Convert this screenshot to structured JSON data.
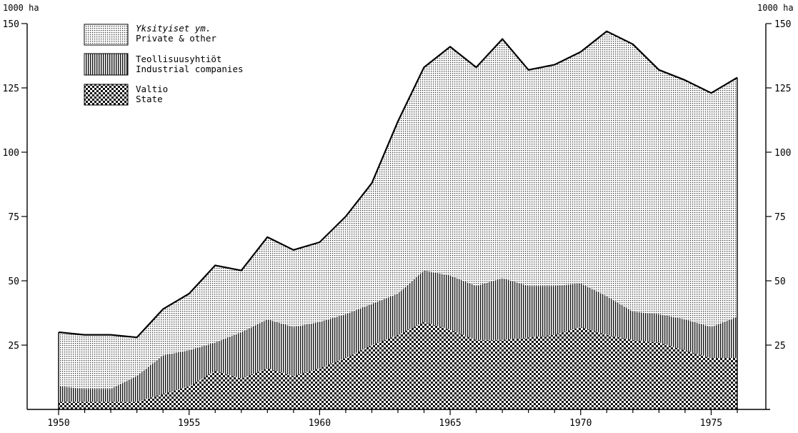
{
  "chart_data": {
    "type": "area",
    "stacked": true,
    "y_unit_left": "1000 ha",
    "y_unit_right": "1000 ha",
    "xlim": [
      1950,
      1976
    ],
    "ylim": [
      0,
      150
    ],
    "x_ticks": [
      1950,
      1955,
      1960,
      1965,
      1970,
      1975
    ],
    "x_tick_labels": [
      "1950",
      "1955",
      "1960",
      "1965",
      "1970",
      "1975"
    ],
    "y_ticks": [
      25,
      50,
      75,
      100,
      125,
      150
    ],
    "y_tick_labels": [
      "25",
      "50",
      "75",
      "100",
      "125",
      "150"
    ],
    "x": [
      1950,
      1951,
      1952,
      1953,
      1954,
      1955,
      1956,
      1957,
      1958,
      1959,
      1960,
      1961,
      1962,
      1963,
      1964,
      1965,
      1966,
      1967,
      1968,
      1969,
      1970,
      1971,
      1972,
      1973,
      1974,
      1975,
      1976
    ],
    "series": [
      {
        "name_fi": "Valtio",
        "name_en": "State",
        "pattern": "checker",
        "values": [
          3,
          3,
          3,
          3,
          6,
          9,
          15,
          12,
          16,
          13,
          16,
          20,
          25,
          29,
          34,
          31,
          27,
          27,
          28,
          29,
          32,
          29,
          27,
          26,
          23,
          20,
          20
        ]
      },
      {
        "name_fi": "Teollisuusyhtiöt",
        "name_en": "Industrial companies",
        "pattern": "vertical-lines",
        "values": [
          6,
          5,
          5,
          10,
          15,
          14,
          11,
          18,
          19,
          19,
          18,
          17,
          16,
          16,
          20,
          21,
          21,
          24,
          20,
          19,
          17,
          15,
          11,
          11,
          12,
          12,
          16
        ]
      },
      {
        "name_fi": "Yksityiset ym.",
        "name_en": "Private & other",
        "pattern": "dots",
        "values": [
          21,
          21,
          21,
          15,
          18,
          22,
          30,
          24,
          32,
          30,
          31,
          38,
          47,
          67,
          79,
          89,
          85,
          93,
          84,
          86,
          90,
          103,
          104,
          95,
          93,
          91,
          93
        ]
      }
    ],
    "legend_placement": "top-left",
    "grid": false
  }
}
